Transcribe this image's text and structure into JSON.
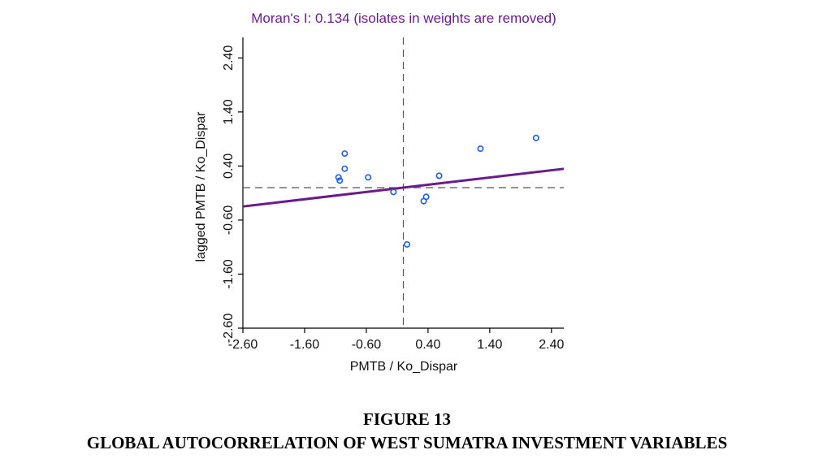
{
  "chart_data": {
    "type": "scatter",
    "title": "Moran's I: 0.134 (isolates in weights are removed)",
    "xlabel": "PMTB / Ko_Dispar",
    "ylabel": "lagged PMTB / Ko_Dispar",
    "xlim": [
      -2.6,
      2.6
    ],
    "ylim": [
      -2.6,
      2.6
    ],
    "x_ticks": [
      "-2.60",
      "-1.60",
      "-0.60",
      "0.40",
      "1.40",
      "2.40"
    ],
    "y_ticks": [
      "-2.60",
      "-1.60",
      "-0.60",
      "0.40",
      "1.40",
      "2.40"
    ],
    "grid": false,
    "quadrant_lines": {
      "x": 0.0,
      "y": 0.0
    },
    "regression": {
      "slope": 0.134,
      "intercept": 0.0
    },
    "points": [
      {
        "x": -1.05,
        "y": 0.19
      },
      {
        "x": -1.03,
        "y": 0.13
      },
      {
        "x": -0.95,
        "y": 0.63
      },
      {
        "x": -0.95,
        "y": 0.35
      },
      {
        "x": -0.57,
        "y": 0.19
      },
      {
        "x": -0.16,
        "y": -0.08
      },
      {
        "x": 0.06,
        "y": -1.05
      },
      {
        "x": 0.33,
        "y": -0.25
      },
      {
        "x": 0.37,
        "y": -0.17
      },
      {
        "x": 0.58,
        "y": 0.22
      },
      {
        "x": 1.25,
        "y": 0.72
      },
      {
        "x": 2.15,
        "y": 0.92
      }
    ],
    "colors": {
      "points": "#1f5fe0",
      "regression": "#6a1b8c",
      "title": "#6a1b8c"
    }
  },
  "caption": {
    "figure_number": "FIGURE 13",
    "title": "GLOBAL AUTOCORRELATION OF WEST SUMATRA INVESTMENT VARIABLES"
  }
}
